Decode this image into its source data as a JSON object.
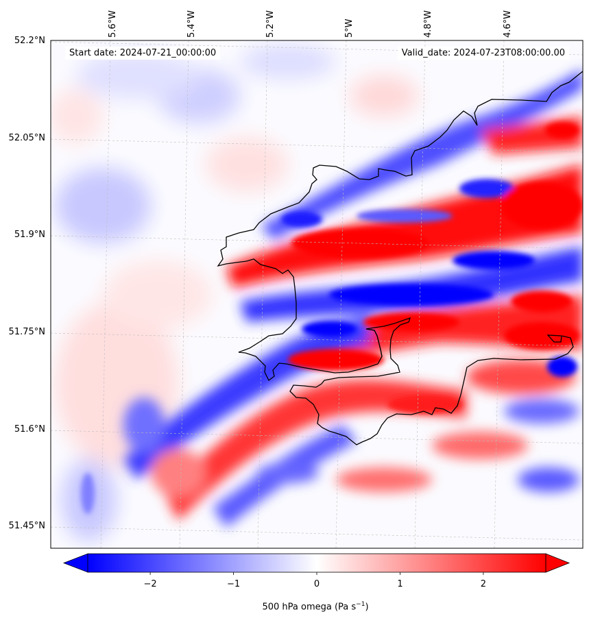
{
  "map": {
    "start_date_label": "Start date: 2024-07-21_00:00:00",
    "valid_date_label": "Valid_date: 2024-07-23T08:00:00.00",
    "lon_ticks": [
      "5.6°W",
      "5.4°W",
      "5.2°W",
      "5°W",
      "4.8°W",
      "4.6°W"
    ],
    "lat_ticks": [
      "52.2°N",
      "52.05°N",
      "51.9°N",
      "51.75°N",
      "51.6°N",
      "51.45°N"
    ],
    "variable": "500 hPa omega",
    "units": "Pa s⁻¹",
    "colormap": "bwr",
    "value_range": [
      -2.5,
      2.5
    ],
    "coastline_color": "#000000",
    "gridlines": "dashed light gray"
  },
  "colorbar": {
    "label_text": "500 hPa omega (Pa s",
    "label_exponent": "−1",
    "label_close": ")",
    "ticks": [
      "−2",
      "−1",
      "0",
      "1",
      "2"
    ],
    "tick_values": [
      -2,
      -1,
      0,
      1,
      2
    ],
    "min": -2.75,
    "max": 2.75,
    "extend": "both",
    "colors": {
      "negative": "#0000ff",
      "neutral": "#ffffff",
      "positive": "#ff0000"
    }
  }
}
